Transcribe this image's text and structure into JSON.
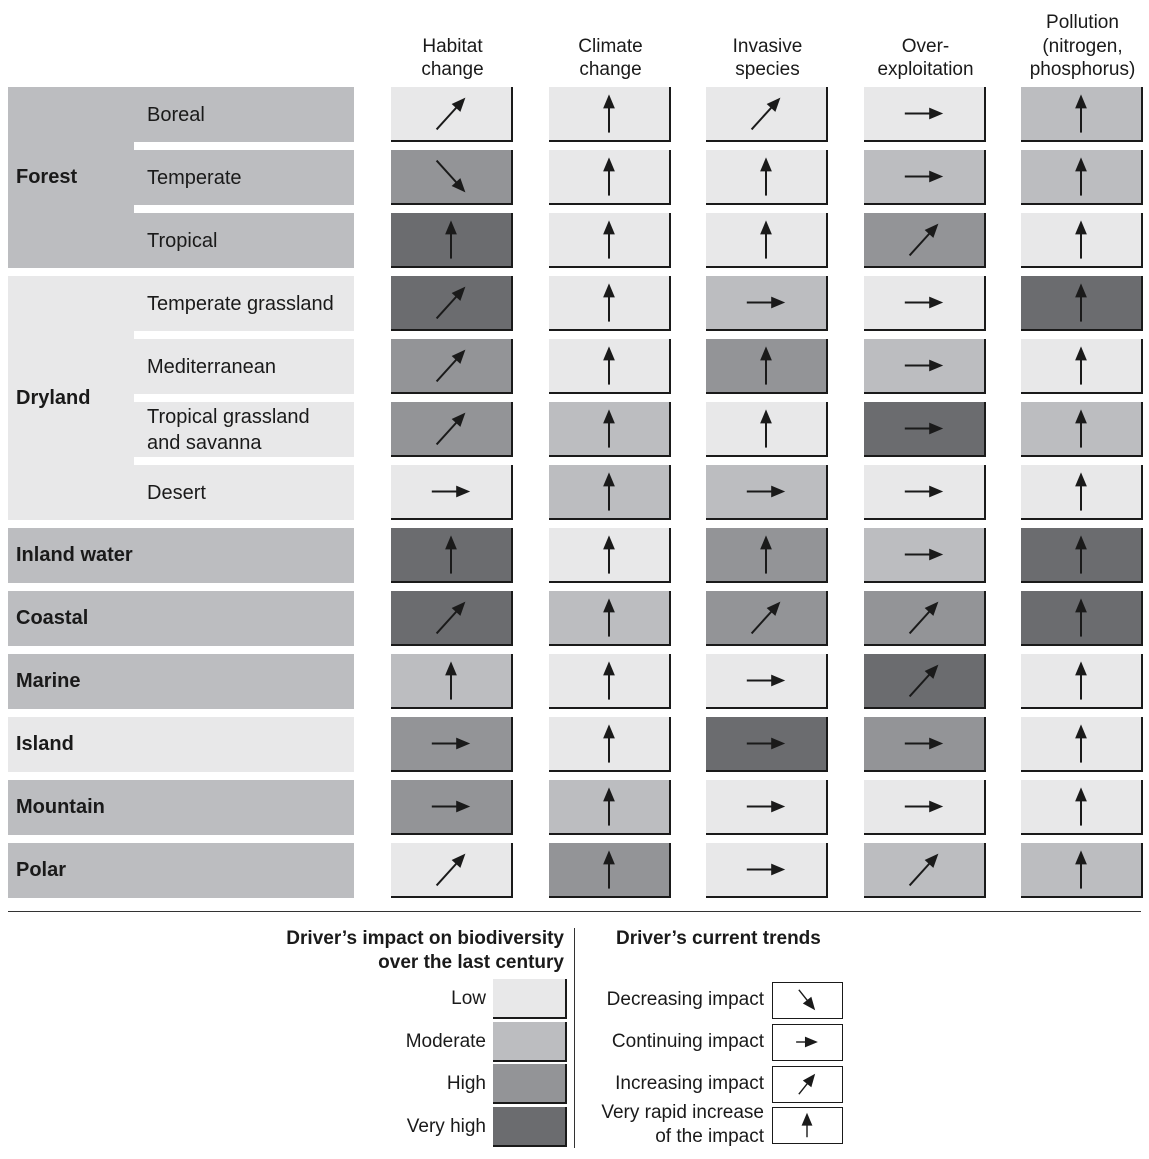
{
  "colors": {
    "Low": "#e8e8e9",
    "Moderate": "#bcbdc0",
    "High": "#939497",
    "Very high": "#6b6c6f"
  },
  "columns": [
    "Habitat\nchange",
    "Climate\nchange",
    "Invasive\nspecies",
    "Over-\nexploitation",
    "Pollution\n(nitrogen,\nphosphorus)"
  ],
  "biomes": [
    {
      "name": "Forest",
      "subs": [
        "Boreal",
        "Temperate",
        "Tropical"
      ]
    },
    {
      "name": "Dryland",
      "subs": [
        "Temperate grassland",
        "Mediterranean",
        "Tropical grassland\nand savanna",
        "Desert"
      ]
    },
    {
      "name": "Inland water",
      "subs": []
    },
    {
      "name": "Coastal",
      "subs": []
    },
    {
      "name": "Marine",
      "subs": []
    },
    {
      "name": "Island",
      "subs": []
    },
    {
      "name": "Mountain",
      "subs": []
    },
    {
      "name": "Polar",
      "subs": []
    }
  ],
  "rows": [
    {
      "label": "Boreal",
      "impact": [
        "Low",
        "Low",
        "Low",
        "Low",
        "Moderate"
      ],
      "trend": [
        "Increasing impact",
        "Very rapid increase of the impact",
        "Increasing impact",
        "Continuing impact",
        "Very rapid increase of the impact"
      ]
    },
    {
      "label": "Temperate",
      "impact": [
        "High",
        "Low",
        "Low",
        "Moderate",
        "Moderate"
      ],
      "trend": [
        "Decreasing impact",
        "Very rapid increase of the impact",
        "Very rapid increase of the impact",
        "Continuing impact",
        "Very rapid increase of the impact"
      ]
    },
    {
      "label": "Tropical",
      "impact": [
        "Very high",
        "Low",
        "Low",
        "High",
        "Low"
      ],
      "trend": [
        "Very rapid increase of the impact",
        "Very rapid increase of the impact",
        "Very rapid increase of the impact",
        "Increasing impact",
        "Very rapid increase of the impact"
      ]
    },
    {
      "label": "Temperate grassland",
      "impact": [
        "Very high",
        "Low",
        "Moderate",
        "Low",
        "Very high"
      ],
      "trend": [
        "Increasing impact",
        "Very rapid increase of the impact",
        "Continuing impact",
        "Continuing impact",
        "Very rapid increase of the impact"
      ]
    },
    {
      "label": "Mediterranean",
      "impact": [
        "High",
        "Low",
        "High",
        "Moderate",
        "Low"
      ],
      "trend": [
        "Increasing impact",
        "Very rapid increase of the impact",
        "Very rapid increase of the impact",
        "Continuing impact",
        "Very rapid increase of the impact"
      ]
    },
    {
      "label": "Tropical grassland and savanna",
      "impact": [
        "High",
        "Moderate",
        "Low",
        "Very high",
        "Moderate"
      ],
      "trend": [
        "Increasing impact",
        "Very rapid increase of the impact",
        "Very rapid increase of the impact",
        "Continuing impact",
        "Very rapid increase of the impact"
      ]
    },
    {
      "label": "Desert",
      "impact": [
        "Low",
        "Moderate",
        "Moderate",
        "Low",
        "Low"
      ],
      "trend": [
        "Continuing impact",
        "Very rapid increase of the impact",
        "Continuing impact",
        "Continuing impact",
        "Very rapid increase of the impact"
      ]
    },
    {
      "label": "Inland water",
      "impact": [
        "Very high",
        "Low",
        "High",
        "Moderate",
        "Very high"
      ],
      "trend": [
        "Very rapid increase of the impact",
        "Very rapid increase of the impact",
        "Very rapid increase of the impact",
        "Continuing impact",
        "Very rapid increase of the impact"
      ]
    },
    {
      "label": "Coastal",
      "impact": [
        "Very high",
        "Moderate",
        "High",
        "High",
        "Very high"
      ],
      "trend": [
        "Increasing impact",
        "Very rapid increase of the impact",
        "Increasing impact",
        "Increasing impact",
        "Very rapid increase of the impact"
      ]
    },
    {
      "label": "Marine",
      "impact": [
        "Moderate",
        "Low",
        "Low",
        "Very high",
        "Low"
      ],
      "trend": [
        "Very rapid increase of the impact",
        "Very rapid increase of the impact",
        "Continuing impact",
        "Increasing impact",
        "Very rapid increase of the impact"
      ]
    },
    {
      "label": "Island",
      "impact": [
        "High",
        "Low",
        "Very high",
        "High",
        "Low"
      ],
      "trend": [
        "Continuing impact",
        "Very rapid increase of the impact",
        "Continuing impact",
        "Continuing impact",
        "Very rapid increase of the impact"
      ]
    },
    {
      "label": "Mountain",
      "impact": [
        "High",
        "Moderate",
        "Low",
        "Low",
        "Low"
      ],
      "trend": [
        "Continuing impact",
        "Very rapid increase of the impact",
        "Continuing impact",
        "Continuing impact",
        "Very rapid increase of the impact"
      ]
    },
    {
      "label": "Polar",
      "impact": [
        "Low",
        "High",
        "Low",
        "Moderate",
        "Moderate"
      ],
      "trend": [
        "Increasing impact",
        "Very rapid increase of the impact",
        "Continuing impact",
        "Increasing impact",
        "Very rapid increase of the impact"
      ]
    }
  ],
  "legend": {
    "impact_title": "Driver’s impact on biodiversity\nover the last century",
    "trend_title": "Driver’s current trends",
    "levels": [
      "Low",
      "Moderate",
      "High",
      "Very high"
    ],
    "trends": [
      "Decreasing impact",
      "Continuing impact",
      "Increasing impact",
      "Very rapid increase\nof the impact"
    ]
  }
}
